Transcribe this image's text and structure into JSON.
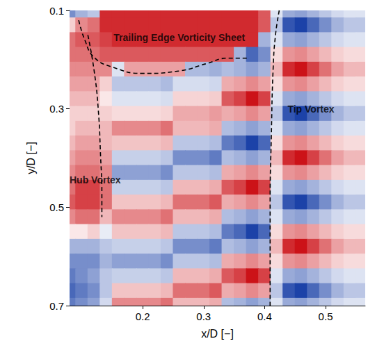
{
  "chart_data": {
    "type": "heatmap",
    "xlabel": "x/D [−]",
    "ylabel": "y/D [−]",
    "xlim": [
      0.08,
      0.565
    ],
    "ylim": [
      0.1,
      0.7
    ],
    "xticks": [
      0.2,
      0.3,
      0.4,
      0.5
    ],
    "yticks": [
      0.1,
      0.3,
      0.5,
      0.7
    ],
    "grid": false,
    "color_range": [
      -1,
      1
    ],
    "x": [
      0.08,
      0.1,
      0.12,
      0.14,
      0.16,
      0.18,
      0.2,
      0.22,
      0.24,
      0.26,
      0.28,
      0.3,
      0.32,
      0.34,
      0.36,
      0.38,
      0.4,
      0.42,
      0.44,
      0.46,
      0.48,
      0.5,
      0.52,
      0.54,
      0.56
    ],
    "y": [
      0.1,
      0.13,
      0.16,
      0.19,
      0.22,
      0.25,
      0.28,
      0.31,
      0.34,
      0.37,
      0.4,
      0.43,
      0.46,
      0.49,
      0.52,
      0.55,
      0.58,
      0.61,
      0.64,
      0.67,
      0.7
    ],
    "values": [
      [
        -0.6,
        -0.4,
        -0.3,
        0.9,
        0.9,
        0.9,
        0.9,
        0.9,
        0.9,
        0.9,
        0.9,
        0.9,
        0.9,
        0.9,
        0.9,
        0.9,
        0.7,
        -0.15,
        -0.45,
        -0.5,
        -0.4,
        -0.3,
        -0.2,
        -0.15,
        -0.15
      ],
      [
        0.2,
        0.5,
        0.6,
        0.9,
        0.9,
        0.9,
        0.9,
        0.9,
        0.9,
        0.9,
        0.9,
        0.9,
        0.9,
        0.9,
        0.9,
        0.9,
        0.7,
        -0.3,
        -0.9,
        -1,
        -0.8,
        -0.6,
        -0.4,
        -0.3,
        -0.3
      ],
      [
        0.6,
        0.7,
        0.7,
        0.8,
        0.9,
        0.9,
        0.9,
        0.9,
        0.9,
        0.9,
        0.9,
        0.9,
        0.9,
        0.9,
        0.9,
        0.9,
        -0.4,
        -0.15,
        -0.45,
        -0.5,
        -0.4,
        -0.3,
        -0.2,
        -0.15,
        -0.15
      ],
      [
        0.6,
        0.6,
        0.6,
        0.7,
        0.7,
        0.7,
        0.7,
        0.7,
        0.7,
        0.7,
        0.7,
        0.7,
        0.7,
        0.7,
        -0.4,
        -0.8,
        -0.6,
        0.15,
        0.45,
        0.5,
        0.4,
        0.3,
        0.2,
        0.15,
        0.15
      ],
      [
        0.5,
        0.5,
        0.5,
        0.5,
        -0.15,
        0.4,
        0.4,
        0.4,
        0.4,
        0.4,
        -0.36,
        -0.36,
        -0.42,
        -0.35,
        -0.4,
        -0.5,
        -0.4,
        0.3,
        0.9,
        1,
        0.8,
        0.6,
        0.4,
        0.3,
        0.3
      ],
      [
        0.4,
        0.4,
        0.4,
        0.2,
        -0.3,
        -0.3,
        -0.3,
        -0.3,
        -0.36,
        -0.18,
        -0.18,
        -0.18,
        -0.21,
        0.35,
        0.4,
        0.5,
        0.4,
        0.15,
        0.45,
        0.5,
        0.4,
        0.3,
        0.2,
        0.15,
        0.15
      ],
      [
        0.3,
        0.3,
        0.3,
        0.1,
        -0.15,
        -0.15,
        -0.15,
        -0.15,
        -0.18,
        0.18,
        0.18,
        0.18,
        0.21,
        0.7,
        0.8,
        1,
        0.8,
        -0.15,
        -0.45,
        -0.5,
        -0.4,
        -0.3,
        -0.2,
        -0.15,
        -0.15
      ],
      [
        0.2,
        0.2,
        0.2,
        0.2,
        0.15,
        0.15,
        0.15,
        0.15,
        0.18,
        0.36,
        0.36,
        0.36,
        0.42,
        0.35,
        0.4,
        0.5,
        0.4,
        -0.3,
        -0.9,
        -1,
        -0.8,
        -0.6,
        -0.4,
        -0.3,
        -0.3
      ],
      [
        0.2,
        0.3,
        0.3,
        0.3,
        0.5,
        0.5,
        0.5,
        0.5,
        0.6,
        0.3,
        0.3,
        0.3,
        0.35,
        -0.35,
        -0.4,
        -0.5,
        -0.4,
        -0.15,
        -0.45,
        -0.5,
        -0.4,
        -0.3,
        -0.2,
        -0.15,
        -0.15
      ],
      [
        0.3,
        0.4,
        0.4,
        0.3,
        0.25,
        0.25,
        0.25,
        0.25,
        0.3,
        -0.3,
        -0.3,
        -0.3,
        -0.35,
        -0.7,
        -0.8,
        -1,
        -0.8,
        0.15,
        0.45,
        0.5,
        0.4,
        0.3,
        0.2,
        0.15,
        0.15
      ],
      [
        0.4,
        0.5,
        0.5,
        0.4,
        -0.25,
        -0.25,
        -0.25,
        -0.25,
        -0.3,
        -0.6,
        -0.6,
        -0.6,
        -0.7,
        -0.35,
        -0.4,
        -0.5,
        -0.4,
        0.3,
        0.9,
        1,
        0.8,
        0.6,
        0.4,
        0.3,
        0.3
      ],
      [
        0.5,
        0.6,
        0.6,
        0.5,
        -0.5,
        -0.5,
        -0.5,
        -0.5,
        -0.6,
        -0.3,
        -0.3,
        -0.3,
        -0.35,
        0.35,
        0.4,
        0.5,
        0.4,
        0.15,
        0.45,
        0.5,
        0.4,
        0.3,
        0.2,
        0.15,
        0.15
      ],
      [
        0.6,
        0.8,
        0.8,
        0.6,
        -0.25,
        -0.25,
        -0.25,
        -0.25,
        -0.3,
        0.3,
        0.3,
        0.3,
        0.35,
        0.7,
        0.8,
        1,
        0.8,
        -0.15,
        -0.45,
        -0.5,
        -0.4,
        -0.3,
        -0.2,
        -0.15,
        -0.15
      ],
      [
        0.7,
        0.8,
        0.8,
        0.6,
        0.25,
        0.25,
        0.25,
        0.25,
        0.3,
        0.6,
        0.6,
        0.6,
        0.7,
        0.35,
        0.4,
        0.5,
        0.4,
        -0.3,
        -0.9,
        -1,
        -0.8,
        -0.6,
        -0.4,
        -0.3,
        -0.3
      ],
      [
        0.5,
        0.6,
        0.6,
        0.3,
        0.5,
        0.5,
        0.5,
        0.5,
        0.6,
        0.3,
        0.3,
        0.3,
        0.35,
        -0.35,
        -0.4,
        -0.5,
        -0.4,
        -0.15,
        -0.45,
        -0.5,
        -0.4,
        -0.3,
        -0.2,
        -0.15,
        -0.15
      ],
      [
        0.1,
        0.1,
        0.2,
        -0.1,
        0.25,
        0.25,
        0.25,
        0.25,
        0.3,
        -0.3,
        -0.3,
        -0.3,
        -0.35,
        -0.7,
        -0.8,
        -1,
        -0.8,
        0.15,
        0.45,
        0.5,
        0.4,
        0.3,
        0.2,
        0.15,
        0.15
      ],
      [
        -0.4,
        -0.4,
        -0.4,
        -0.3,
        -0.25,
        -0.25,
        -0.25,
        -0.25,
        -0.3,
        -0.6,
        -0.6,
        -0.6,
        -0.7,
        -0.35,
        -0.4,
        -0.5,
        -0.4,
        0.3,
        0.9,
        1,
        0.8,
        0.6,
        0.4,
        0.3,
        0.3
      ],
      [
        -0.6,
        -0.6,
        -0.6,
        -0.4,
        -0.5,
        -0.5,
        -0.5,
        -0.5,
        -0.6,
        -0.3,
        -0.3,
        -0.3,
        -0.35,
        0.35,
        0.4,
        0.5,
        0.4,
        0.15,
        0.45,
        0.5,
        0.4,
        0.3,
        0.2,
        0.15,
        0.15
      ],
      [
        -0.7,
        -0.6,
        -0.5,
        -0.3,
        -0.25,
        -0.25,
        -0.25,
        -0.25,
        -0.3,
        0.3,
        0.3,
        0.3,
        0.35,
        0.7,
        0.8,
        1,
        0.8,
        -0.15,
        -0.45,
        -0.5,
        -0.4,
        -0.3,
        -0.2,
        -0.15,
        -0.15
      ],
      [
        -0.8,
        -0.7,
        -0.6,
        -0.3,
        0.25,
        0.25,
        0.25,
        0.25,
        0.3,
        0.6,
        0.6,
        0.6,
        0.7,
        0.35,
        0.4,
        0.5,
        0.4,
        -0.3,
        -0.9,
        -1,
        -0.8,
        -0.6,
        -0.4,
        -0.3,
        -0.3
      ],
      [
        -0.7,
        -0.6,
        -0.5,
        -0.2,
        0.5,
        0.5,
        0.5,
        0.5,
        0.6,
        0.3,
        0.3,
        0.3,
        0.35,
        -0.35,
        -0.4,
        -0.5,
        -0.4,
        -0.15,
        -0.45,
        -0.5,
        -0.4,
        -0.3,
        -0.2,
        -0.15,
        -0.15
      ]
    ],
    "boundaries": [
      {
        "line_style": "dashed",
        "points": [
          [
            0.095,
            0.12
          ],
          [
            0.105,
            0.16
          ],
          [
            0.12,
            0.195
          ],
          [
            0.15,
            0.215
          ],
          [
            0.2,
            0.228
          ],
          [
            0.26,
            0.223
          ],
          [
            0.305,
            0.208
          ],
          [
            0.34,
            0.197
          ],
          [
            0.373,
            0.197
          ]
        ]
      },
      {
        "line_style": "dashed",
        "points": [
          [
            0.11,
            0.15
          ],
          [
            0.12,
            0.22
          ],
          [
            0.127,
            0.3
          ],
          [
            0.131,
            0.4
          ],
          [
            0.133,
            0.47
          ],
          [
            0.133,
            0.52
          ]
        ]
      },
      {
        "line_style": "dashed",
        "points": [
          [
            0.424,
            0.1
          ],
          [
            0.418,
            0.148
          ],
          [
            0.414,
            0.217
          ],
          [
            0.411,
            0.355
          ],
          [
            0.409,
            0.493
          ],
          [
            0.409,
            0.7
          ]
        ]
      }
    ],
    "annotations": [
      {
        "text": "Trailing Edge Vorticity Sheet",
        "x": 0.26,
        "y": 0.155
      },
      {
        "text": "Tip Vortex",
        "x": 0.476,
        "y": 0.3
      },
      {
        "text": "Hub Vortex",
        "x": 0.122,
        "y": 0.445
      }
    ]
  }
}
